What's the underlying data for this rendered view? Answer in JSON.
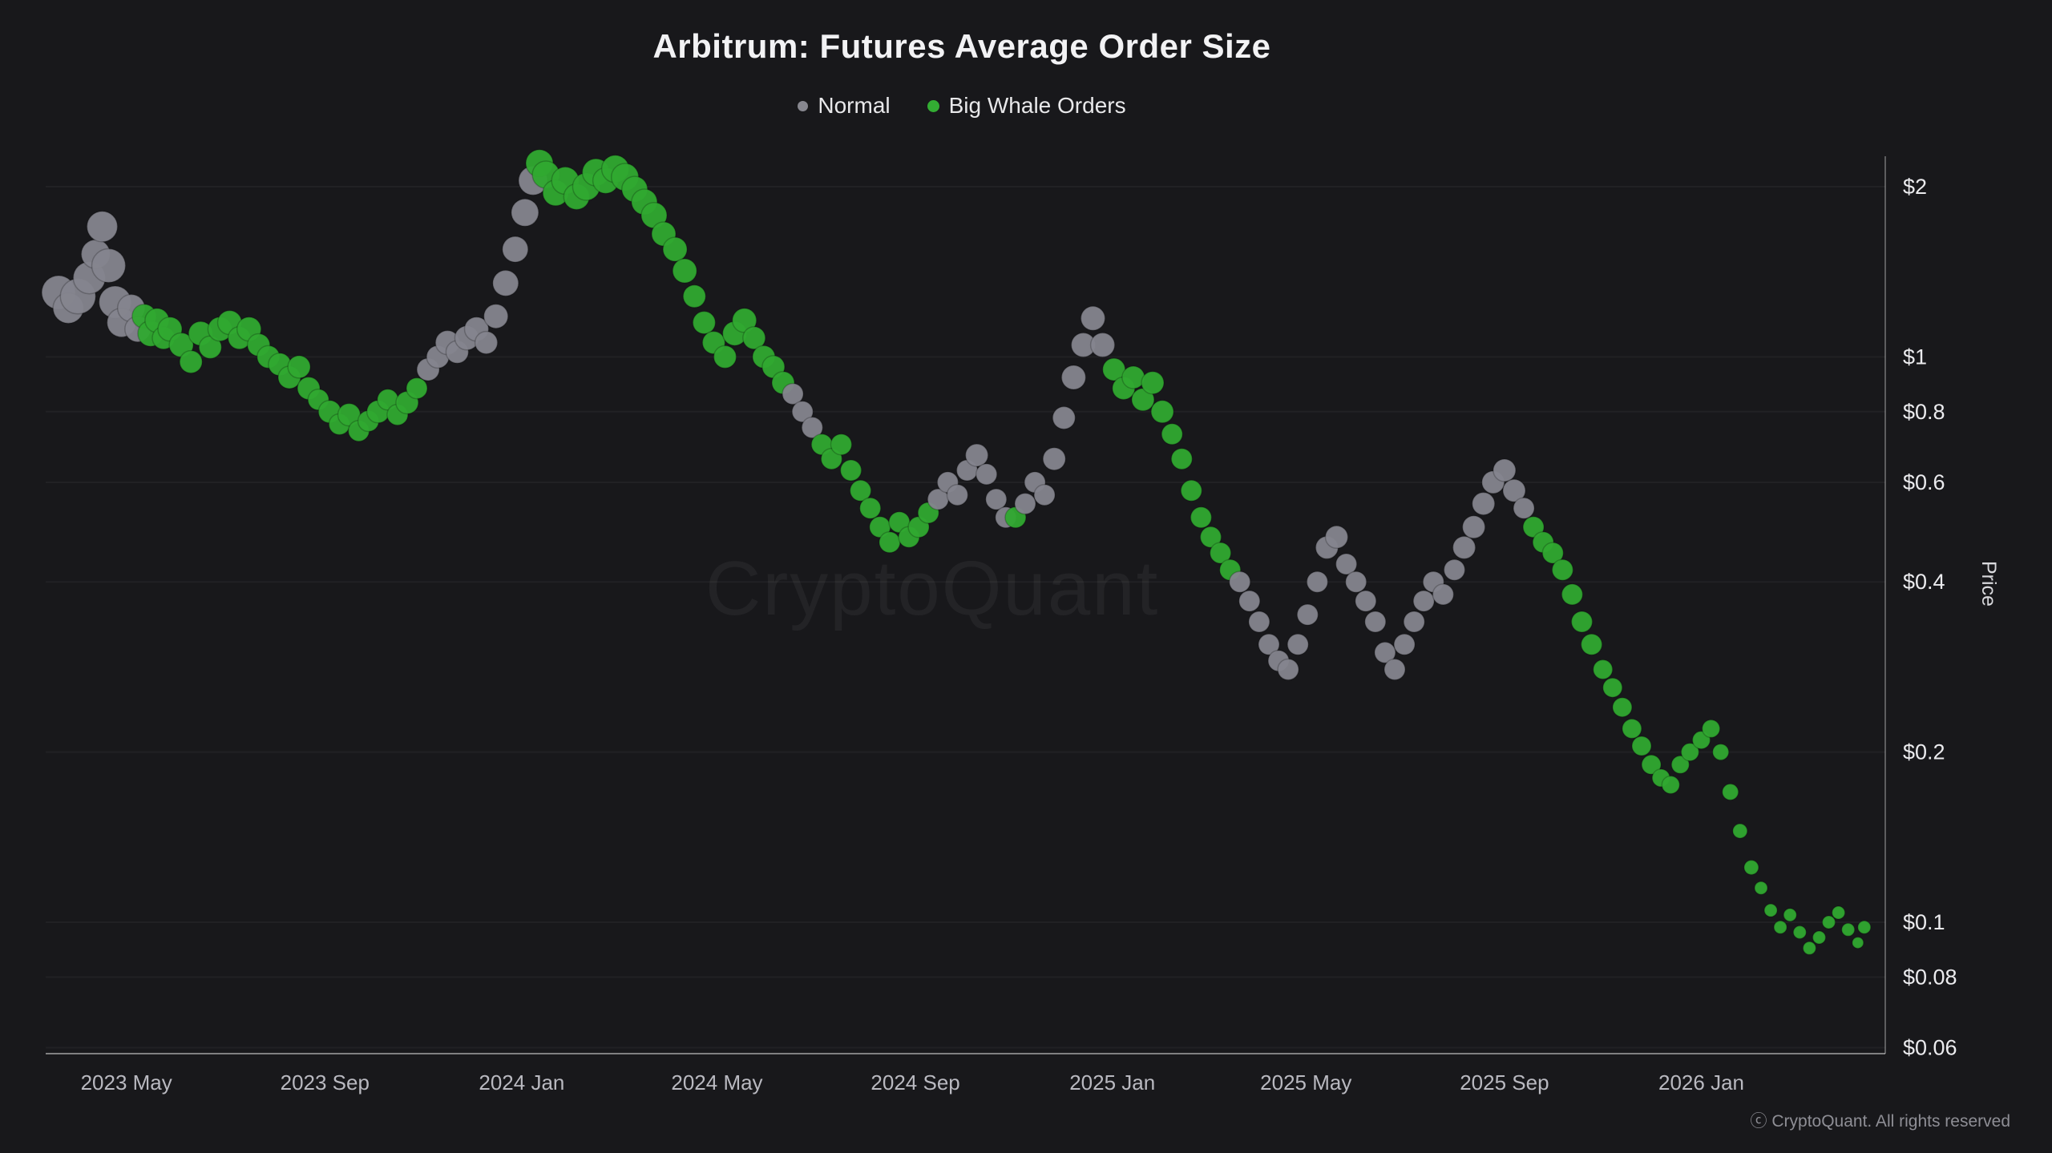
{
  "page": {
    "title": "Arbitrum: Futures Average Order Size",
    "watermark": "CryptoQuant",
    "footer": "ⓒ CryptoQuant. All rights reserved"
  },
  "legend": {
    "items": [
      {
        "label": "Normal",
        "series": "normal",
        "color": "#87878f"
      },
      {
        "label": "Big Whale Orders",
        "series": "whale",
        "color": "#33ad33"
      }
    ]
  },
  "chart_data": {
    "type": "scatter",
    "title": "Arbitrum: Futures Average Order Size",
    "xlabel": "",
    "ylabel": "Price",
    "y_scale": "log",
    "y_range": [
      0.055,
      2.3
    ],
    "x_range": [
      "2023-03-12",
      "2026-04-25"
    ],
    "grid": "subtle-horizontal",
    "legend_position": "top-center",
    "series_colors": {
      "normal": "#85858e",
      "whale": "#30a930"
    },
    "y_ticks": [
      {
        "value": 2,
        "label": "$2"
      },
      {
        "value": 1,
        "label": "$1"
      },
      {
        "value": 0.8,
        "label": "$0.8"
      },
      {
        "value": 0.6,
        "label": "$0.6"
      },
      {
        "value": 0.4,
        "label": "$0.4"
      },
      {
        "value": 0.2,
        "label": "$0.2"
      },
      {
        "value": 0.1,
        "label": "$0.1"
      },
      {
        "value": 0.08,
        "label": "$0.08"
      },
      {
        "value": 0.06,
        "label": "$0.06"
      }
    ],
    "x_ticks": [
      {
        "date": "2023-05-01",
        "label": "2023 May"
      },
      {
        "date": "2023-09-01",
        "label": "2023 Sep"
      },
      {
        "date": "2024-01-01",
        "label": "2024 Jan"
      },
      {
        "date": "2024-05-01",
        "label": "2024 May"
      },
      {
        "date": "2024-09-01",
        "label": "2024 Sep"
      },
      {
        "date": "2025-01-01",
        "label": "2025 Jan"
      },
      {
        "date": "2025-05-01",
        "label": "2025 May"
      },
      {
        "date": "2025-09-01",
        "label": "2025 Sep"
      },
      {
        "date": "2026-01-01",
        "label": "2026 Jan"
      }
    ],
    "points": {
      "columns": [
        "date",
        "price",
        "series",
        "radius"
      ],
      "rows": [
        [
          "2023-03-20",
          1.3,
          "normal",
          21
        ],
        [
          "2023-03-26",
          1.22,
          "normal",
          19
        ],
        [
          "2023-04-01",
          1.28,
          "normal",
          22
        ],
        [
          "2023-04-08",
          1.38,
          "normal",
          20
        ],
        [
          "2023-04-12",
          1.52,
          "normal",
          18
        ],
        [
          "2023-04-16",
          1.7,
          "normal",
          19
        ],
        [
          "2023-04-20",
          1.45,
          "normal",
          21
        ],
        [
          "2023-04-24",
          1.25,
          "normal",
          20
        ],
        [
          "2023-04-28",
          1.15,
          "normal",
          18
        ],
        [
          "2023-05-04",
          1.22,
          "normal",
          17
        ],
        [
          "2023-05-08",
          1.12,
          "normal",
          16
        ],
        [
          "2023-05-12",
          1.18,
          "whale",
          15
        ],
        [
          "2023-05-16",
          1.1,
          "whale",
          16
        ],
        [
          "2023-05-20",
          1.16,
          "whale",
          15
        ],
        [
          "2023-05-24",
          1.08,
          "whale",
          14
        ],
        [
          "2023-05-28",
          1.12,
          "whale",
          15
        ],
        [
          "2023-06-04",
          1.05,
          "whale",
          15
        ],
        [
          "2023-06-10",
          0.98,
          "whale",
          14
        ],
        [
          "2023-06-16",
          1.1,
          "whale",
          15
        ],
        [
          "2023-06-22",
          1.04,
          "whale",
          14
        ],
        [
          "2023-06-28",
          1.12,
          "whale",
          15
        ],
        [
          "2023-07-04",
          1.15,
          "whale",
          15
        ],
        [
          "2023-07-10",
          1.08,
          "whale",
          14
        ],
        [
          "2023-07-16",
          1.12,
          "whale",
          15
        ],
        [
          "2023-07-22",
          1.05,
          "whale",
          14
        ],
        [
          "2023-07-28",
          1.0,
          "whale",
          14
        ],
        [
          "2023-08-04",
          0.97,
          "whale",
          14
        ],
        [
          "2023-08-10",
          0.92,
          "whale",
          14
        ],
        [
          "2023-08-16",
          0.96,
          "whale",
          14
        ],
        [
          "2023-08-22",
          0.88,
          "whale",
          14
        ],
        [
          "2023-08-28",
          0.84,
          "whale",
          13
        ],
        [
          "2023-09-04",
          0.8,
          "whale",
          14
        ],
        [
          "2023-09-10",
          0.76,
          "whale",
          13
        ],
        [
          "2023-09-16",
          0.79,
          "whale",
          14
        ],
        [
          "2023-09-22",
          0.74,
          "whale",
          13
        ],
        [
          "2023-09-28",
          0.77,
          "whale",
          13
        ],
        [
          "2023-10-04",
          0.8,
          "whale",
          14
        ],
        [
          "2023-10-10",
          0.84,
          "whale",
          13
        ],
        [
          "2023-10-16",
          0.79,
          "whale",
          13
        ],
        [
          "2023-10-22",
          0.83,
          "whale",
          14
        ],
        [
          "2023-10-28",
          0.88,
          "whale",
          13
        ],
        [
          "2023-11-04",
          0.95,
          "normal",
          14
        ],
        [
          "2023-11-10",
          1.0,
          "normal",
          14
        ],
        [
          "2023-11-16",
          1.06,
          "normal",
          15
        ],
        [
          "2023-11-22",
          1.02,
          "normal",
          14
        ],
        [
          "2023-11-28",
          1.08,
          "normal",
          15
        ],
        [
          "2023-12-04",
          1.12,
          "normal",
          15
        ],
        [
          "2023-12-10",
          1.06,
          "normal",
          14
        ],
        [
          "2023-12-16",
          1.18,
          "normal",
          15
        ],
        [
          "2023-12-22",
          1.35,
          "normal",
          16
        ],
        [
          "2023-12-28",
          1.55,
          "normal",
          16
        ],
        [
          "2024-01-03",
          1.8,
          "normal",
          17
        ],
        [
          "2024-01-08",
          2.05,
          "normal",
          18
        ],
        [
          "2024-01-12",
          2.2,
          "whale",
          17
        ],
        [
          "2024-01-16",
          2.1,
          "whale",
          17
        ],
        [
          "2024-01-22",
          1.95,
          "whale",
          16
        ],
        [
          "2024-01-28",
          2.05,
          "whale",
          17
        ],
        [
          "2024-02-04",
          1.92,
          "whale",
          16
        ],
        [
          "2024-02-10",
          2.0,
          "whale",
          17
        ],
        [
          "2024-02-16",
          2.12,
          "whale",
          17
        ],
        [
          "2024-02-22",
          2.05,
          "whale",
          16
        ],
        [
          "2024-02-28",
          2.15,
          "whale",
          17
        ],
        [
          "2024-03-05",
          2.08,
          "whale",
          17
        ],
        [
          "2024-03-11",
          1.98,
          "whale",
          16
        ],
        [
          "2024-03-17",
          1.88,
          "whale",
          16
        ],
        [
          "2024-03-23",
          1.78,
          "whale",
          16
        ],
        [
          "2024-03-29",
          1.65,
          "whale",
          15
        ],
        [
          "2024-04-05",
          1.55,
          "whale",
          15
        ],
        [
          "2024-04-11",
          1.42,
          "whale",
          15
        ],
        [
          "2024-04-17",
          1.28,
          "whale",
          14
        ],
        [
          "2024-04-23",
          1.15,
          "whale",
          14
        ],
        [
          "2024-04-29",
          1.06,
          "whale",
          14
        ],
        [
          "2024-05-06",
          1.0,
          "whale",
          14
        ],
        [
          "2024-05-12",
          1.1,
          "whale",
          15
        ],
        [
          "2024-05-18",
          1.16,
          "whale",
          15
        ],
        [
          "2024-05-24",
          1.08,
          "whale",
          14
        ],
        [
          "2024-05-30",
          1.0,
          "whale",
          14
        ],
        [
          "2024-06-05",
          0.96,
          "whale",
          14
        ],
        [
          "2024-06-11",
          0.9,
          "whale",
          14
        ],
        [
          "2024-06-17",
          0.86,
          "normal",
          13
        ],
        [
          "2024-06-23",
          0.8,
          "normal",
          13
        ],
        [
          "2024-06-29",
          0.75,
          "normal",
          13
        ],
        [
          "2024-07-05",
          0.7,
          "whale",
          13
        ],
        [
          "2024-07-11",
          0.66,
          "whale",
          13
        ],
        [
          "2024-07-17",
          0.7,
          "whale",
          13
        ],
        [
          "2024-07-23",
          0.63,
          "whale",
          13
        ],
        [
          "2024-07-29",
          0.58,
          "whale",
          13
        ],
        [
          "2024-08-04",
          0.54,
          "whale",
          13
        ],
        [
          "2024-08-10",
          0.5,
          "whale",
          13
        ],
        [
          "2024-08-16",
          0.47,
          "whale",
          13
        ],
        [
          "2024-08-22",
          0.51,
          "whale",
          13
        ],
        [
          "2024-08-28",
          0.48,
          "whale",
          13
        ],
        [
          "2024-09-03",
          0.5,
          "whale",
          13
        ],
        [
          "2024-09-09",
          0.53,
          "whale",
          13
        ],
        [
          "2024-09-15",
          0.56,
          "normal",
          13
        ],
        [
          "2024-09-21",
          0.6,
          "normal",
          13
        ],
        [
          "2024-09-27",
          0.57,
          "normal",
          13
        ],
        [
          "2024-10-03",
          0.63,
          "normal",
          13
        ],
        [
          "2024-10-09",
          0.67,
          "normal",
          14
        ],
        [
          "2024-10-15",
          0.62,
          "normal",
          13
        ],
        [
          "2024-10-21",
          0.56,
          "normal",
          13
        ],
        [
          "2024-10-27",
          0.52,
          "normal",
          13
        ],
        [
          "2024-11-02",
          0.52,
          "whale",
          13
        ],
        [
          "2024-11-08",
          0.55,
          "normal",
          13
        ],
        [
          "2024-11-14",
          0.6,
          "normal",
          13
        ],
        [
          "2024-11-20",
          0.57,
          "normal",
          13
        ],
        [
          "2024-11-26",
          0.66,
          "normal",
          14
        ],
        [
          "2024-12-02",
          0.78,
          "normal",
          14
        ],
        [
          "2024-12-08",
          0.92,
          "normal",
          15
        ],
        [
          "2024-12-14",
          1.05,
          "normal",
          15
        ],
        [
          "2024-12-20",
          1.17,
          "normal",
          15
        ],
        [
          "2024-12-26",
          1.05,
          "normal",
          15
        ],
        [
          "2025-01-02",
          0.95,
          "whale",
          14
        ],
        [
          "2025-01-08",
          0.88,
          "whale",
          14
        ],
        [
          "2025-01-14",
          0.92,
          "whale",
          14
        ],
        [
          "2025-01-20",
          0.84,
          "whale",
          14
        ],
        [
          "2025-01-26",
          0.9,
          "whale",
          14
        ],
        [
          "2025-02-01",
          0.8,
          "whale",
          14
        ],
        [
          "2025-02-07",
          0.73,
          "whale",
          13
        ],
        [
          "2025-02-13",
          0.66,
          "whale",
          13
        ],
        [
          "2025-02-19",
          0.58,
          "whale",
          13
        ],
        [
          "2025-02-25",
          0.52,
          "whale",
          13
        ],
        [
          "2025-03-03",
          0.48,
          "whale",
          13
        ],
        [
          "2025-03-09",
          0.45,
          "whale",
          13
        ],
        [
          "2025-03-15",
          0.42,
          "whale",
          13
        ],
        [
          "2025-03-21",
          0.4,
          "normal",
          13
        ],
        [
          "2025-03-27",
          0.37,
          "normal",
          13
        ],
        [
          "2025-04-02",
          0.34,
          "normal",
          13
        ],
        [
          "2025-04-08",
          0.31,
          "normal",
          13
        ],
        [
          "2025-04-14",
          0.29,
          "normal",
          13
        ],
        [
          "2025-04-20",
          0.28,
          "normal",
          13
        ],
        [
          "2025-04-26",
          0.31,
          "normal",
          13
        ],
        [
          "2025-05-02",
          0.35,
          "normal",
          13
        ],
        [
          "2025-05-08",
          0.4,
          "normal",
          13
        ],
        [
          "2025-05-14",
          0.46,
          "normal",
          14
        ],
        [
          "2025-05-20",
          0.48,
          "normal",
          14
        ],
        [
          "2025-05-26",
          0.43,
          "normal",
          13
        ],
        [
          "2025-06-01",
          0.4,
          "normal",
          13
        ],
        [
          "2025-06-07",
          0.37,
          "normal",
          13
        ],
        [
          "2025-06-13",
          0.34,
          "normal",
          13
        ],
        [
          "2025-06-19",
          0.3,
          "normal",
          13
        ],
        [
          "2025-06-25",
          0.28,
          "normal",
          13
        ],
        [
          "2025-07-01",
          0.31,
          "normal",
          13
        ],
        [
          "2025-07-07",
          0.34,
          "normal",
          13
        ],
        [
          "2025-07-13",
          0.37,
          "normal",
          13
        ],
        [
          "2025-07-19",
          0.4,
          "normal",
          13
        ],
        [
          "2025-07-25",
          0.38,
          "normal",
          13
        ],
        [
          "2025-08-01",
          0.42,
          "normal",
          13
        ],
        [
          "2025-08-07",
          0.46,
          "normal",
          14
        ],
        [
          "2025-08-13",
          0.5,
          "normal",
          14
        ],
        [
          "2025-08-19",
          0.55,
          "normal",
          14
        ],
        [
          "2025-08-25",
          0.6,
          "normal",
          14
        ],
        [
          "2025-09-01",
          0.63,
          "normal",
          14
        ],
        [
          "2025-09-07",
          0.58,
          "normal",
          14
        ],
        [
          "2025-09-13",
          0.54,
          "normal",
          13
        ],
        [
          "2025-09-19",
          0.5,
          "whale",
          13
        ],
        [
          "2025-09-25",
          0.47,
          "whale",
          13
        ],
        [
          "2025-10-01",
          0.45,
          "whale",
          13
        ],
        [
          "2025-10-07",
          0.42,
          "whale",
          13
        ],
        [
          "2025-10-13",
          0.38,
          "whale",
          13
        ],
        [
          "2025-10-19",
          0.34,
          "whale",
          13
        ],
        [
          "2025-10-25",
          0.31,
          "whale",
          13
        ],
        [
          "2025-11-01",
          0.28,
          "whale",
          12
        ],
        [
          "2025-11-07",
          0.26,
          "whale",
          12
        ],
        [
          "2025-11-13",
          0.24,
          "whale",
          12
        ],
        [
          "2025-11-19",
          0.22,
          "whale",
          12
        ],
        [
          "2025-11-25",
          0.205,
          "whale",
          12
        ],
        [
          "2025-12-01",
          0.19,
          "whale",
          12
        ],
        [
          "2025-12-07",
          0.18,
          "whale",
          11
        ],
        [
          "2025-12-13",
          0.175,
          "whale",
          11
        ],
        [
          "2025-12-19",
          0.19,
          "whale",
          11
        ],
        [
          "2025-12-25",
          0.2,
          "whale",
          11
        ],
        [
          "2026-01-01",
          0.21,
          "whale",
          11
        ],
        [
          "2026-01-07",
          0.22,
          "whale",
          11
        ],
        [
          "2026-01-13",
          0.2,
          "whale",
          10
        ],
        [
          "2026-01-19",
          0.17,
          "whale",
          10
        ],
        [
          "2026-01-25",
          0.145,
          "whale",
          9
        ],
        [
          "2026-02-01",
          0.125,
          "whale",
          9
        ],
        [
          "2026-02-07",
          0.115,
          "whale",
          8
        ],
        [
          "2026-02-13",
          0.105,
          "whale",
          8
        ],
        [
          "2026-02-19",
          0.098,
          "whale",
          8
        ],
        [
          "2026-02-25",
          0.103,
          "whale",
          8
        ],
        [
          "2026-03-03",
          0.096,
          "whale",
          8
        ],
        [
          "2026-03-09",
          0.09,
          "whale",
          8
        ],
        [
          "2026-03-15",
          0.094,
          "whale",
          8
        ],
        [
          "2026-03-21",
          0.1,
          "whale",
          8
        ],
        [
          "2026-03-27",
          0.104,
          "whale",
          8
        ],
        [
          "2026-04-02",
          0.097,
          "whale",
          8
        ],
        [
          "2026-04-08",
          0.092,
          "whale",
          7
        ],
        [
          "2026-04-12",
          0.098,
          "whale",
          8
        ]
      ]
    }
  }
}
